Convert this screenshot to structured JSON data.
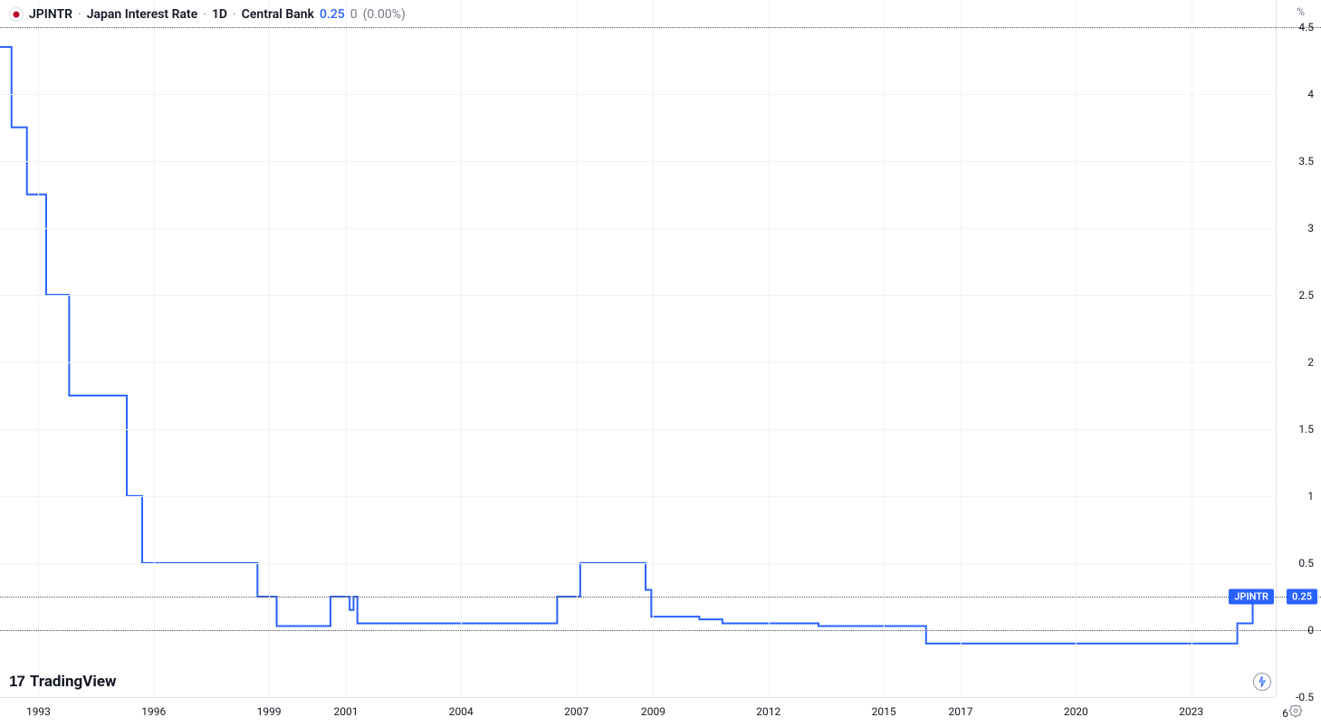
{
  "header": {
    "ticker": "JPINTR",
    "description": "Japan Interest Rate",
    "timeframe": "1D",
    "source": "Central Bank",
    "value": "0.25",
    "change_abs": "0",
    "change_pct": "(0.00%)"
  },
  "chart": {
    "type": "line-step",
    "line_color": "#2962ff",
    "line_width": 2,
    "background_color": "#ffffff",
    "grid_color": "#f0f3fa",
    "dotted_color": "#58585a",
    "y_axis": {
      "unit": "%",
      "min": -0.5,
      "max": 4.7,
      "ticks": [
        -0.5,
        0,
        0.5,
        1,
        1.5,
        2,
        2.5,
        3,
        3.5,
        4,
        4.5
      ],
      "labels": [
        "-0.5",
        "0",
        "0.5",
        "1",
        "1.5",
        "2",
        "2.5",
        "3",
        "3.5",
        "4",
        "4.5"
      ]
    },
    "x_axis": {
      "min": 1992,
      "max": 2025.2,
      "ticks": [
        1993,
        1996,
        1999,
        2001,
        2004,
        2007,
        2009,
        2012,
        2015,
        2017,
        2020,
        2023
      ],
      "labels": [
        "1993",
        "1996",
        "1999",
        "2001",
        "2004",
        "2007",
        "2009",
        "2012",
        "2015",
        "2017",
        "2020",
        "2023"
      ]
    },
    "dotted_reference_lines": [
      0.25,
      4.5,
      0
    ],
    "current_value": 0.25,
    "current_ticker_label": "JPINTR",
    "current_value_label": "0.25",
    "series": [
      [
        1992.0,
        4.35
      ],
      [
        1992.3,
        4.35
      ],
      [
        1992.3,
        3.75
      ],
      [
        1992.7,
        3.75
      ],
      [
        1992.7,
        3.25
      ],
      [
        1993.2,
        3.25
      ],
      [
        1993.2,
        2.5
      ],
      [
        1993.8,
        2.5
      ],
      [
        1993.8,
        1.75
      ],
      [
        1995.3,
        1.75
      ],
      [
        1995.3,
        1.0
      ],
      [
        1995.7,
        1.0
      ],
      [
        1995.7,
        0.5
      ],
      [
        1998.7,
        0.5
      ],
      [
        1998.7,
        0.25
      ],
      [
        1999.2,
        0.25
      ],
      [
        1999.2,
        0.03
      ],
      [
        2000.6,
        0.03
      ],
      [
        2000.6,
        0.25
      ],
      [
        2001.1,
        0.25
      ],
      [
        2001.1,
        0.15
      ],
      [
        2001.2,
        0.15
      ],
      [
        2001.2,
        0.25
      ],
      [
        2001.3,
        0.25
      ],
      [
        2001.3,
        0.05
      ],
      [
        2006.5,
        0.05
      ],
      [
        2006.5,
        0.25
      ],
      [
        2007.1,
        0.25
      ],
      [
        2007.1,
        0.5
      ],
      [
        2008.8,
        0.5
      ],
      [
        2008.8,
        0.3
      ],
      [
        2008.95,
        0.3
      ],
      [
        2008.95,
        0.1
      ],
      [
        2010.2,
        0.1
      ],
      [
        2010.2,
        0.08
      ],
      [
        2010.8,
        0.08
      ],
      [
        2010.8,
        0.05
      ],
      [
        2013.3,
        0.05
      ],
      [
        2013.3,
        0.03
      ],
      [
        2016.1,
        0.03
      ],
      [
        2016.1,
        -0.1
      ],
      [
        2024.2,
        -0.1
      ],
      [
        2024.2,
        0.05
      ],
      [
        2024.6,
        0.05
      ],
      [
        2024.6,
        0.25
      ],
      [
        2025.0,
        0.25
      ]
    ]
  },
  "watermark": "TradingView",
  "footer": {
    "go_label": "6"
  }
}
